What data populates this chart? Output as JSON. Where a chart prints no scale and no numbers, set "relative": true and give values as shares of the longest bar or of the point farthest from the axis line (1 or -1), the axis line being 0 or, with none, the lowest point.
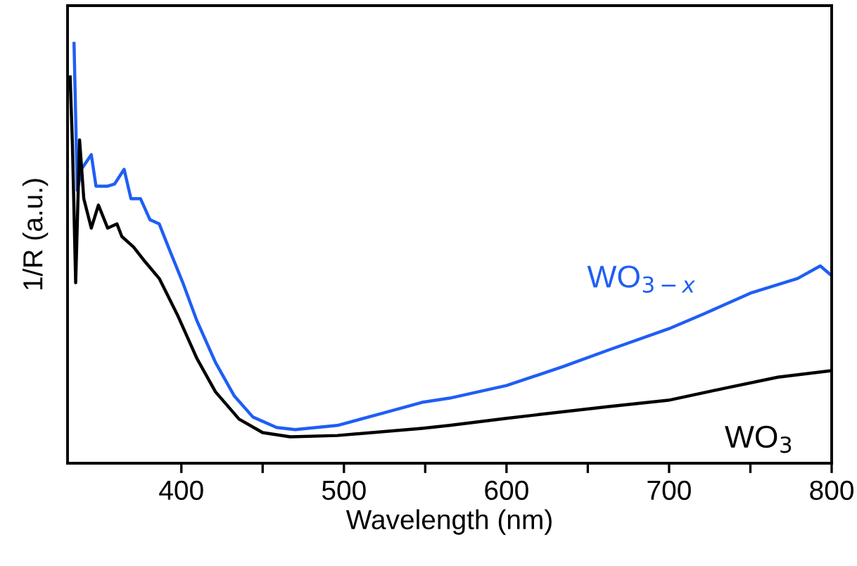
{
  "chart_data": {
    "type": "line",
    "relative": true,
    "xlabel": "Wavelength (nm)",
    "ylabel": "1/R (a.u.)",
    "xlim": [
      330,
      800
    ],
    "xticks": [
      400,
      {
        "value": 450,
        "label": null
      },
      500,
      {
        "value": 550,
        "label": null
      },
      600,
      {
        "value": 650,
        "label": null
      },
      700,
      {
        "value": 750,
        "label": null
      },
      800
    ],
    "tick_labels": "x",
    "grid": false,
    "legend": false,
    "marker": "none",
    "line_style": "solid",
    "series": [
      {
        "name": "WO$_{3−x}$",
        "color": "#1f5ef5",
        "x": [
          334,
          336,
          338.5,
          344.6,
          347.5,
          354.7,
          358.9,
          364.8,
          369,
          374.9,
          380.7,
          386.4,
          392,
          400.9,
          409.5,
          421,
          432.6,
          444,
          458.6,
          470,
          496,
          524.7,
          548,
          565,
          600,
          634.6,
          663,
          699.6,
          721,
          750,
          779,
          793,
          799
        ],
        "values": [
          1.0,
          0.65,
          0.7,
          0.735,
          0.66,
          0.66,
          0.665,
          0.7,
          0.63,
          0.63,
          0.58,
          0.57,
          0.515,
          0.43,
          0.34,
          0.24,
          0.16,
          0.11,
          0.085,
          0.08,
          0.09,
          0.12,
          0.145,
          0.155,
          0.185,
          0.23,
          0.27,
          0.32,
          0.355,
          0.405,
          0.44,
          0.47,
          0.45
        ]
      },
      {
        "name": "WO$_{3}$",
        "color": "#000000",
        "x": [
          331.6,
          333,
          335,
          337.4,
          340,
          344.6,
          349,
          354.7,
          360.4,
          363.4,
          370.6,
          377.7,
          386.4,
          398,
          409.5,
          421,
          435.5,
          450,
          467,
          496,
          548,
          565,
          600,
          663,
          699.6,
          736,
          767,
          799
        ],
        "values": [
          0.92,
          0.76,
          0.43,
          0.77,
          0.63,
          0.56,
          0.615,
          0.56,
          0.57,
          0.54,
          0.515,
          0.48,
          0.44,
          0.35,
          0.25,
          0.17,
          0.105,
          0.073,
          0.063,
          0.066,
          0.083,
          0.09,
          0.107,
          0.135,
          0.15,
          0.18,
          0.205,
          0.22
        ]
      }
    ]
  }
}
